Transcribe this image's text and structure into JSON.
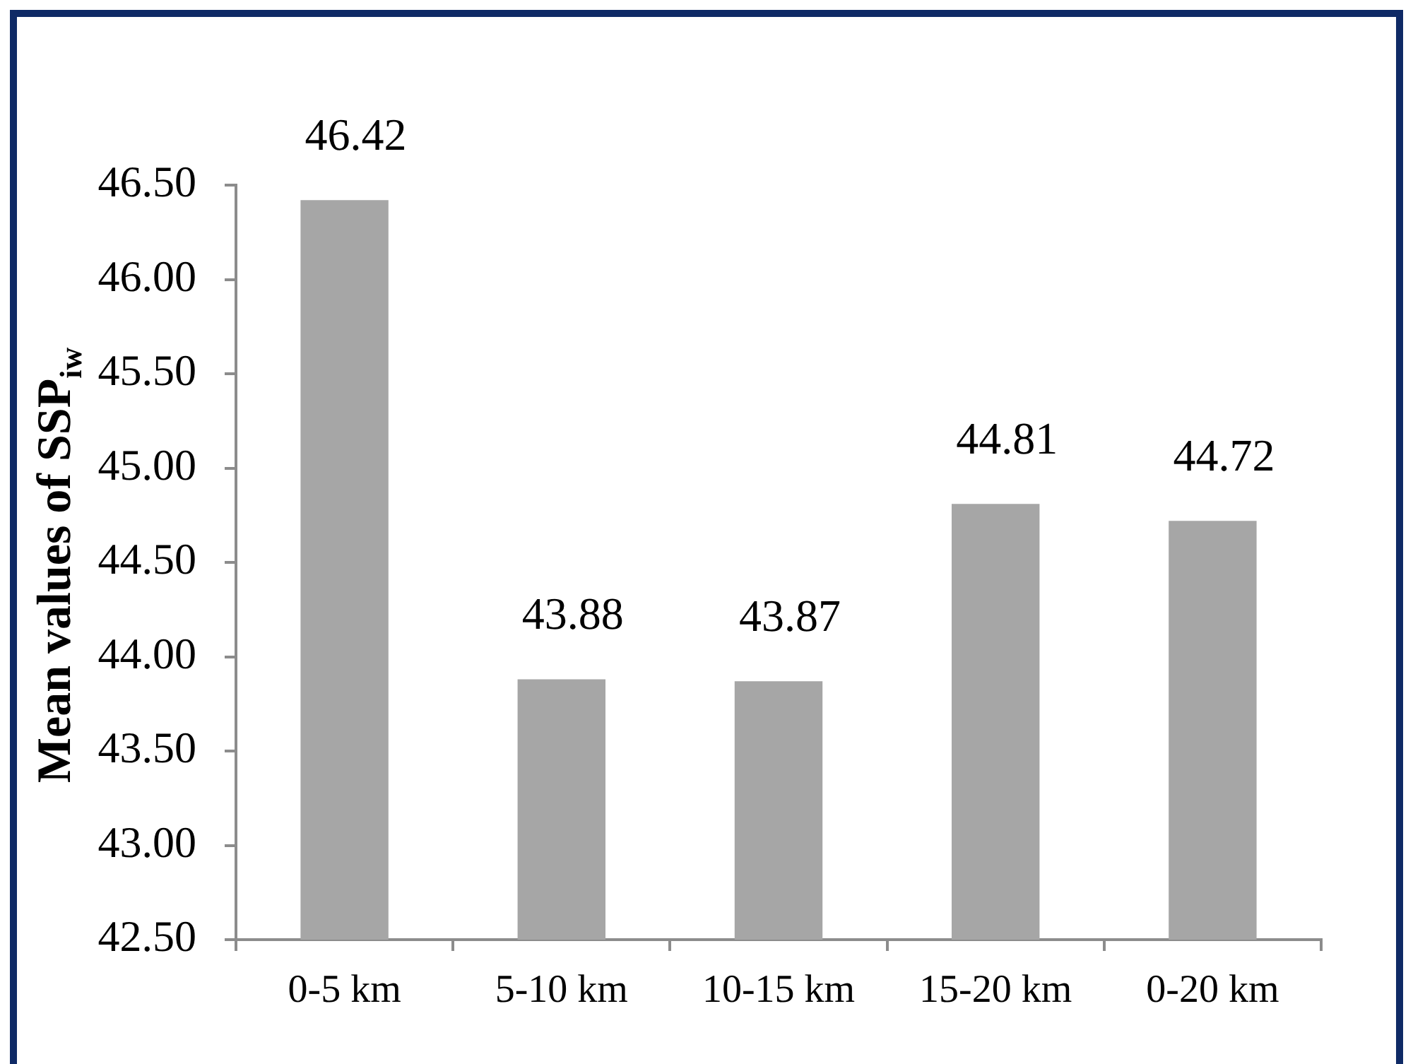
{
  "chart_data": {
    "type": "bar",
    "ylabel": "Mean values of SSP$_{iw}$",
    "categories": [
      "0-5 km",
      "5-10 km",
      "10-15 km",
      "15-20 km",
      "0-20 km"
    ],
    "values": [
      46.42,
      43.88,
      43.87,
      44.81,
      44.72
    ],
    "color": "#a6a6a6",
    "ylim": [
      42.5,
      46.5
    ],
    "yticks": [
      {
        "value": 42.5,
        "label": "42.50"
      },
      {
        "value": 43,
        "label": "43.00"
      },
      {
        "value": 43.5,
        "label": "43.50"
      },
      {
        "value": 44,
        "label": "44.00"
      },
      {
        "value": 44.5,
        "label": "44.50"
      },
      {
        "value": 45,
        "label": "45.00"
      },
      {
        "value": 45.5,
        "label": "45.50"
      },
      {
        "value": 46,
        "label": "46.00"
      },
      {
        "value": 46.5,
        "label": "46.50"
      }
    ],
    "data_labels": true
  }
}
